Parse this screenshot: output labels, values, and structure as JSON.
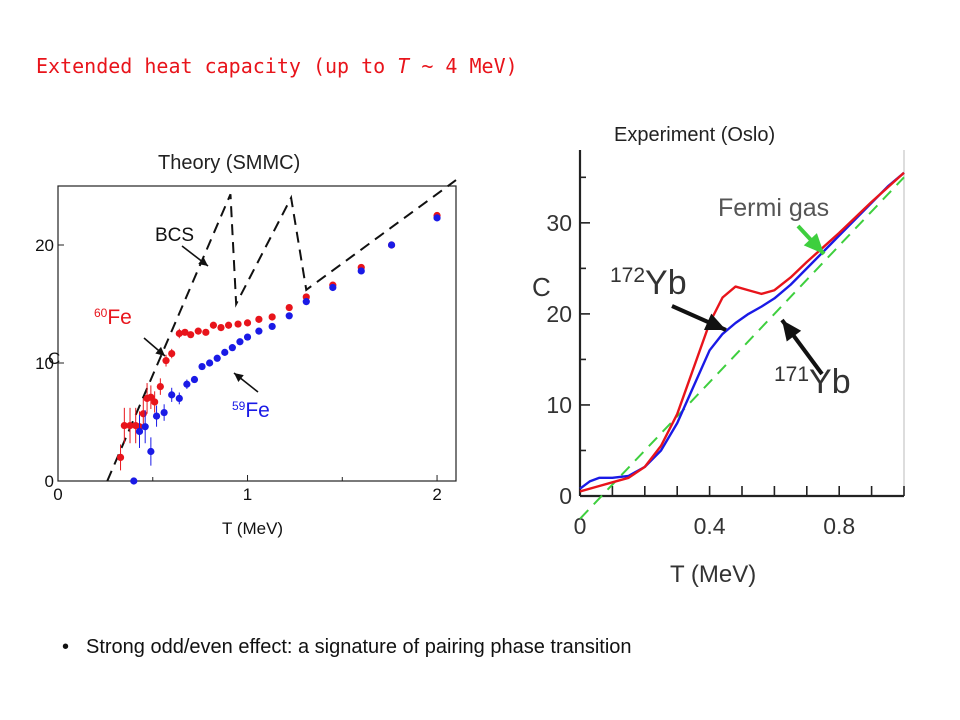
{
  "slide": {
    "title_prefix": "Extended heat capacity (up to ",
    "title_var": "T",
    "title_suffix": " ~ 4 MeV)",
    "bullet": "Strong odd/even effect: a signature of pairing phase transition"
  },
  "colors": {
    "title": "#e8141b",
    "red": "#e8141b",
    "blue": "#1a1ae6",
    "green": "#3ecf3e",
    "black": "#111111"
  },
  "chart_data": [
    {
      "type": "scatter",
      "caption": "Theory (SMMC)",
      "xlabel": "T (MeV)",
      "ylabel": "C",
      "xlim": [
        0,
        2.1
      ],
      "ylim": [
        0,
        25
      ],
      "xticks": [
        0,
        1,
        2
      ],
      "yticks": [
        0,
        10,
        20
      ],
      "grid": false,
      "series": [
        {
          "name": "60Fe",
          "label_mass": "60",
          "label_element": "Fe",
          "color": "#e8141b",
          "x": [
            0.33,
            0.35,
            0.38,
            0.41,
            0.43,
            0.45,
            0.47,
            0.49,
            0.51,
            0.54,
            0.57,
            0.6,
            0.64,
            0.67,
            0.7,
            0.74,
            0.78,
            0.82,
            0.86,
            0.9,
            0.95,
            1.0,
            1.06,
            1.13,
            1.22,
            1.31,
            1.45,
            1.6,
            1.76,
            2.0
          ],
          "y": [
            2.0,
            4.7,
            4.7,
            4.7,
            4.6,
            5.7,
            7.0,
            7.1,
            6.7,
            8.0,
            10.2,
            10.8,
            12.5,
            12.6,
            12.4,
            12.7,
            12.6,
            13.2,
            13.0,
            13.2,
            13.3,
            13.4,
            13.7,
            13.9,
            14.7,
            15.6,
            16.6,
            18.1,
            20.0,
            22.5
          ],
          "err": [
            1.1,
            1.5,
            1.5,
            1.5,
            1.3,
            1.3,
            1.3,
            1.0,
            0.9,
            0.7,
            0.5,
            0.4,
            0.4,
            0.3,
            0.3,
            0.3,
            0.3,
            0.3,
            0.3,
            0.3,
            0.3,
            0.3,
            0.3,
            0.3,
            0.3,
            0.3,
            0.3,
            0.3,
            0.3,
            0.3
          ]
        },
        {
          "name": "59Fe",
          "label_mass": "59",
          "label_element": "Fe",
          "color": "#1a1ae6",
          "x": [
            0.4,
            0.43,
            0.46,
            0.49,
            0.52,
            0.56,
            0.6,
            0.64,
            0.68,
            0.72,
            0.76,
            0.8,
            0.84,
            0.88,
            0.92,
            0.96,
            1.0,
            1.06,
            1.13,
            1.22,
            1.31,
            1.45,
            1.6,
            1.76,
            2.0
          ],
          "y": [
            0.0,
            4.2,
            4.6,
            2.5,
            5.5,
            5.8,
            7.3,
            7.0,
            8.2,
            8.6,
            9.7,
            10.0,
            10.4,
            10.9,
            11.3,
            11.8,
            12.2,
            12.7,
            13.1,
            14.0,
            15.2,
            16.4,
            17.8,
            20.0,
            22.3
          ],
          "err": [
            0,
            1.4,
            1.4,
            1.2,
            0.9,
            0.7,
            0.6,
            0.5,
            0.4,
            0.3,
            0.3,
            0.3,
            0.3,
            0.3,
            0.3,
            0.3,
            0.3,
            0.3,
            0.3,
            0.3,
            0.3,
            0.3,
            0.3,
            0.3,
            0.3
          ]
        },
        {
          "name": "BCS",
          "type": "line",
          "style": "dashed",
          "color": "#111111",
          "x": [
            0.26,
            0.91,
            0.94,
            1.23,
            1.31,
            2.1
          ],
          "y": [
            0.0,
            24.3,
            15.0,
            24.0,
            16.2,
            25.5
          ]
        }
      ],
      "annotations": [
        {
          "text": "BCS"
        }
      ]
    },
    {
      "type": "line",
      "caption": "Experiment (Oslo)",
      "xlabel": "T (MeV)",
      "ylabel": "C",
      "xlim": [
        0,
        1.0
      ],
      "ylim": [
        0,
        38
      ],
      "xticks": [
        0,
        0.4,
        0.8
      ],
      "xtick_labels": [
        "0",
        "0.4",
        "0.8"
      ],
      "yticks": [
        0,
        10,
        20,
        30
      ],
      "grid": false,
      "series": [
        {
          "name": "172Yb",
          "label_mass": "172",
          "label_element": "Yb",
          "color": "#e8141b",
          "x": [
            0.0,
            0.05,
            0.1,
            0.15,
            0.2,
            0.25,
            0.3,
            0.35,
            0.4,
            0.44,
            0.48,
            0.52,
            0.56,
            0.6,
            0.65,
            0.7,
            0.75,
            0.8,
            0.85,
            0.9,
            0.95,
            1.0
          ],
          "y": [
            0.5,
            1.0,
            1.5,
            2.0,
            3.2,
            5.5,
            9.0,
            14.0,
            19.0,
            21.8,
            23.0,
            22.6,
            22.2,
            22.6,
            24.0,
            25.7,
            27.3,
            28.9,
            30.6,
            32.3,
            33.9,
            35.5
          ]
        },
        {
          "name": "171Yb",
          "label_mass": "171",
          "label_element": "Yb",
          "color": "#1a1ae6",
          "x": [
            0.0,
            0.03,
            0.06,
            0.1,
            0.15,
            0.2,
            0.25,
            0.3,
            0.35,
            0.4,
            0.44,
            0.48,
            0.52,
            0.56,
            0.6,
            0.65,
            0.7,
            0.75,
            0.8,
            0.85,
            0.9,
            0.95,
            1.0
          ],
          "y": [
            0.8,
            1.6,
            2.0,
            2.0,
            2.2,
            3.2,
            5.0,
            8.0,
            12.0,
            16.0,
            17.8,
            19.0,
            20.0,
            20.8,
            21.7,
            23.2,
            25.0,
            26.8,
            28.6,
            30.4,
            32.2,
            34.0,
            35.5
          ]
        },
        {
          "name": "Fermi gas",
          "style": "dashed",
          "color": "#3ecf3e",
          "x": [
            0.0,
            1.0
          ],
          "y": [
            -2.5,
            35.0
          ]
        }
      ]
    }
  ]
}
